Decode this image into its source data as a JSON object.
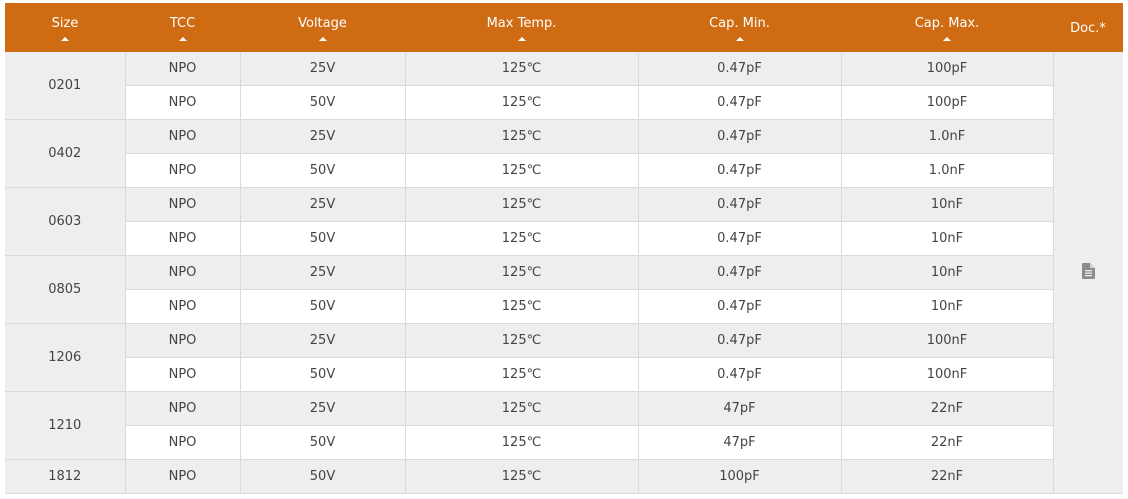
{
  "table": {
    "headers": [
      {
        "label": "Size",
        "sortable": true
      },
      {
        "label": "TCC",
        "sortable": true
      },
      {
        "label": "Voltage",
        "sortable": true
      },
      {
        "label": "Max Temp.",
        "sortable": true
      },
      {
        "label": "Cap. Min.",
        "sortable": true
      },
      {
        "label": "Cap. Max.",
        "sortable": true
      },
      {
        "label": "Doc.*",
        "sortable": false
      }
    ],
    "groups": [
      {
        "size": "0201",
        "rows": [
          [
            "NPO",
            "25V",
            "125℃",
            "0.47pF",
            "100pF"
          ],
          [
            "NPO",
            "50V",
            "125℃",
            "0.47pF",
            "100pF"
          ]
        ]
      },
      {
        "size": "0402",
        "rows": [
          [
            "NPO",
            "25V",
            "125℃",
            "0.47pF",
            "1.0nF"
          ],
          [
            "NPO",
            "50V",
            "125℃",
            "0.47pF",
            "1.0nF"
          ]
        ]
      },
      {
        "size": "0603",
        "rows": [
          [
            "NPO",
            "25V",
            "125℃",
            "0.47pF",
            "10nF"
          ],
          [
            "NPO",
            "50V",
            "125℃",
            "0.47pF",
            "10nF"
          ]
        ]
      },
      {
        "size": "0805",
        "rows": [
          [
            "NPO",
            "25V",
            "125℃",
            "0.47pF",
            "10nF"
          ],
          [
            "NPO",
            "50V",
            "125℃",
            "0.47pF",
            "10nF"
          ]
        ]
      },
      {
        "size": "1206",
        "rows": [
          [
            "NPO",
            "25V",
            "125℃",
            "0.47pF",
            "100nF"
          ],
          [
            "NPO",
            "50V",
            "125℃",
            "0.47pF",
            "100nF"
          ]
        ]
      },
      {
        "size": "1210",
        "rows": [
          [
            "NPO",
            "25V",
            "125℃",
            "47pF",
            "22nF"
          ],
          [
            "NPO",
            "50V",
            "125℃",
            "47pF",
            "22nF"
          ]
        ]
      },
      {
        "size": "1812",
        "rows": [
          [
            "NPO",
            "50V",
            "125℃",
            "100pF",
            "22nF"
          ]
        ]
      }
    ],
    "doc_icon": "document-icon"
  },
  "colors": {
    "header_bg": "#cf6c13",
    "row_alt": "#eceef0",
    "icon": "#8a8c8e"
  }
}
